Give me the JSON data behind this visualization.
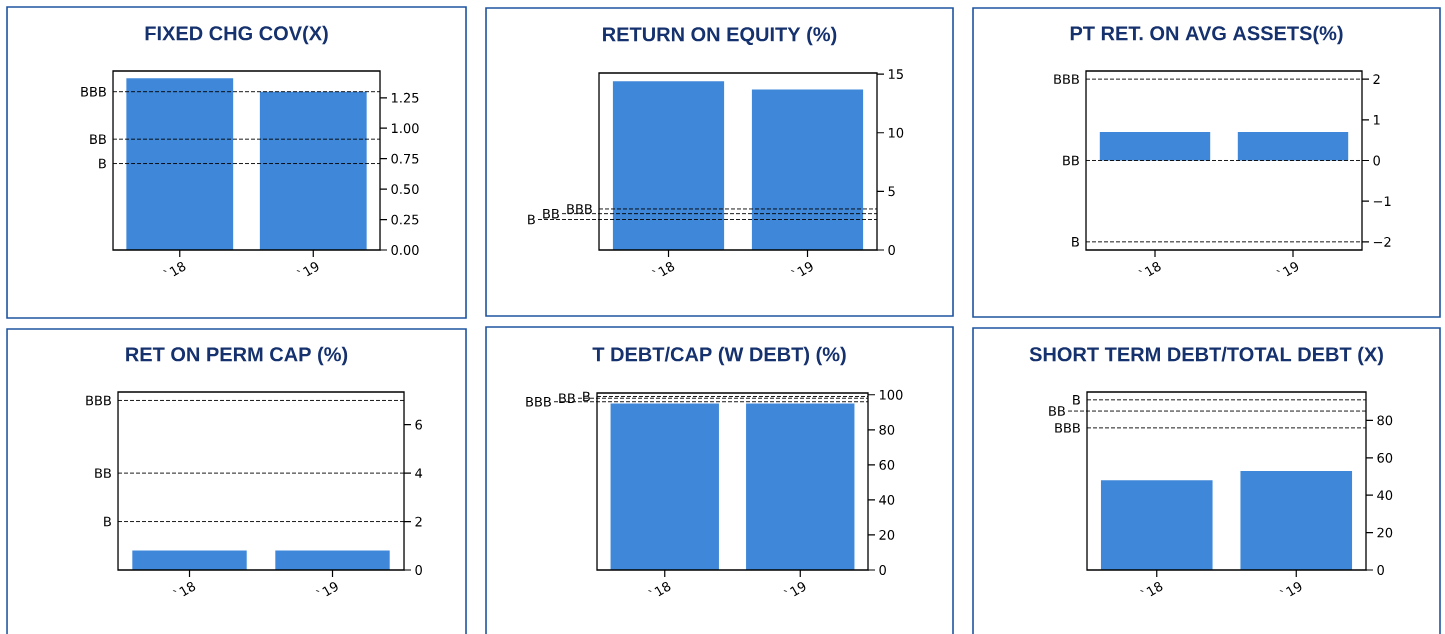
{
  "chart_data": [
    {
      "type": "bar",
      "title": "FIXED CHG COV(X)",
      "categories": [
        "`18",
        "`19"
      ],
      "values": [
        1.41,
        1.3
      ],
      "color": "#3f88d9",
      "ylim": [
        0,
        1.47
      ],
      "yticks": [
        {
          "value": 0,
          "label": "0.00"
        },
        {
          "value": 0.25,
          "label": "0.25"
        },
        {
          "value": 0.5,
          "label": "0.50"
        },
        {
          "value": 0.75,
          "label": "0.75"
        },
        {
          "value": 1.0,
          "label": "1.00"
        },
        {
          "value": 1.25,
          "label": "1.25"
        }
      ],
      "ref_lines": [
        {
          "axis": "y",
          "value": 1.3,
          "label": "BBB",
          "line_style": "dashed"
        },
        {
          "axis": "y",
          "value": 0.91,
          "label": "BB",
          "line_style": "dashed"
        },
        {
          "axis": "y",
          "value": 0.71,
          "label": "B",
          "line_style": "dashed"
        }
      ]
    },
    {
      "type": "bar",
      "title": "RETURN ON EQUITY (%)",
      "categories": [
        "`18",
        "`19"
      ],
      "values": [
        14.4,
        13.7
      ],
      "color": "#3f88d9",
      "ylim": [
        0,
        15.1
      ],
      "yticks": [
        0,
        5,
        10,
        15
      ],
      "ref_lines": [
        {
          "axis": "y",
          "value": 3.5,
          "label": "BBB",
          "line_style": "dashed"
        },
        {
          "axis": "y",
          "value": 3.1,
          "label": "BB",
          "line_style": "dashed"
        },
        {
          "axis": "y",
          "value": 2.6,
          "label": "B",
          "line_style": "dashed"
        }
      ]
    },
    {
      "type": "bar",
      "title": "PT RET. ON AVG ASSETS(%)",
      "categories": [
        "`18",
        "`19"
      ],
      "values": [
        0.7,
        0.7
      ],
      "color": "#3f88d9",
      "ylim": [
        -2.2,
        2.2
      ],
      "yticks": [
        {
          "value": -2,
          "label": "−2"
        },
        {
          "value": -1,
          "label": "−1"
        },
        0,
        1,
        2
      ],
      "ref_lines": [
        {
          "axis": "y",
          "value": 2,
          "label": "BBB",
          "line_style": "dashed"
        },
        {
          "axis": "y",
          "value": 0,
          "label": "BB",
          "line_style": "dashed"
        },
        {
          "axis": "y",
          "value": -2,
          "label": "B",
          "line_style": "dashed"
        }
      ]
    },
    {
      "type": "bar",
      "title": "RET ON PERM CAP (%)",
      "categories": [
        "`18",
        "`19"
      ],
      "values": [
        0.8,
        0.8
      ],
      "color": "#3f88d9",
      "ylim": [
        0,
        7.35
      ],
      "yticks": [
        0,
        2,
        4,
        6
      ],
      "ref_lines": [
        {
          "axis": "y",
          "value": 7.0,
          "label": "BBB",
          "line_style": "dashed"
        },
        {
          "axis": "y",
          "value": 4.0,
          "label": "BB",
          "line_style": "dashed"
        },
        {
          "axis": "y",
          "value": 2.0,
          "label": "B",
          "line_style": "dashed"
        }
      ]
    },
    {
      "type": "bar",
      "title": "T DEBT/CAP (W DEBT) (%)",
      "categories": [
        "`18",
        "`19"
      ],
      "values": [
        95,
        95
      ],
      "color": "#3f88d9",
      "ylim": [
        0,
        101
      ],
      "yticks": [
        0,
        20,
        40,
        60,
        80,
        100
      ],
      "ref_lines": [
        {
          "axis": "y",
          "value": 96,
          "label": "BBB",
          "line_style": "dashed"
        },
        {
          "axis": "y",
          "value": 98,
          "label": "BB",
          "line_style": "dashed"
        },
        {
          "axis": "y",
          "value": 99,
          "label": "B",
          "line_style": "dashed"
        }
      ]
    },
    {
      "type": "bar",
      "title": "SHORT TERM DEBT/TOTAL DEBT (X)",
      "categories": [
        "`18",
        "`19"
      ],
      "values": [
        48,
        53
      ],
      "color": "#3f88d9",
      "ylim": [
        0,
        95.2
      ],
      "yticks": [
        0,
        20,
        40,
        60,
        80
      ],
      "ref_lines": [
        {
          "axis": "y",
          "value": 91,
          "label": "B",
          "line_style": "dashed"
        },
        {
          "axis": "y",
          "value": 85,
          "label": "BB",
          "line_style": "dashed"
        },
        {
          "axis": "y",
          "value": 76,
          "label": "BBB",
          "line_style": "dashed"
        }
      ]
    }
  ]
}
